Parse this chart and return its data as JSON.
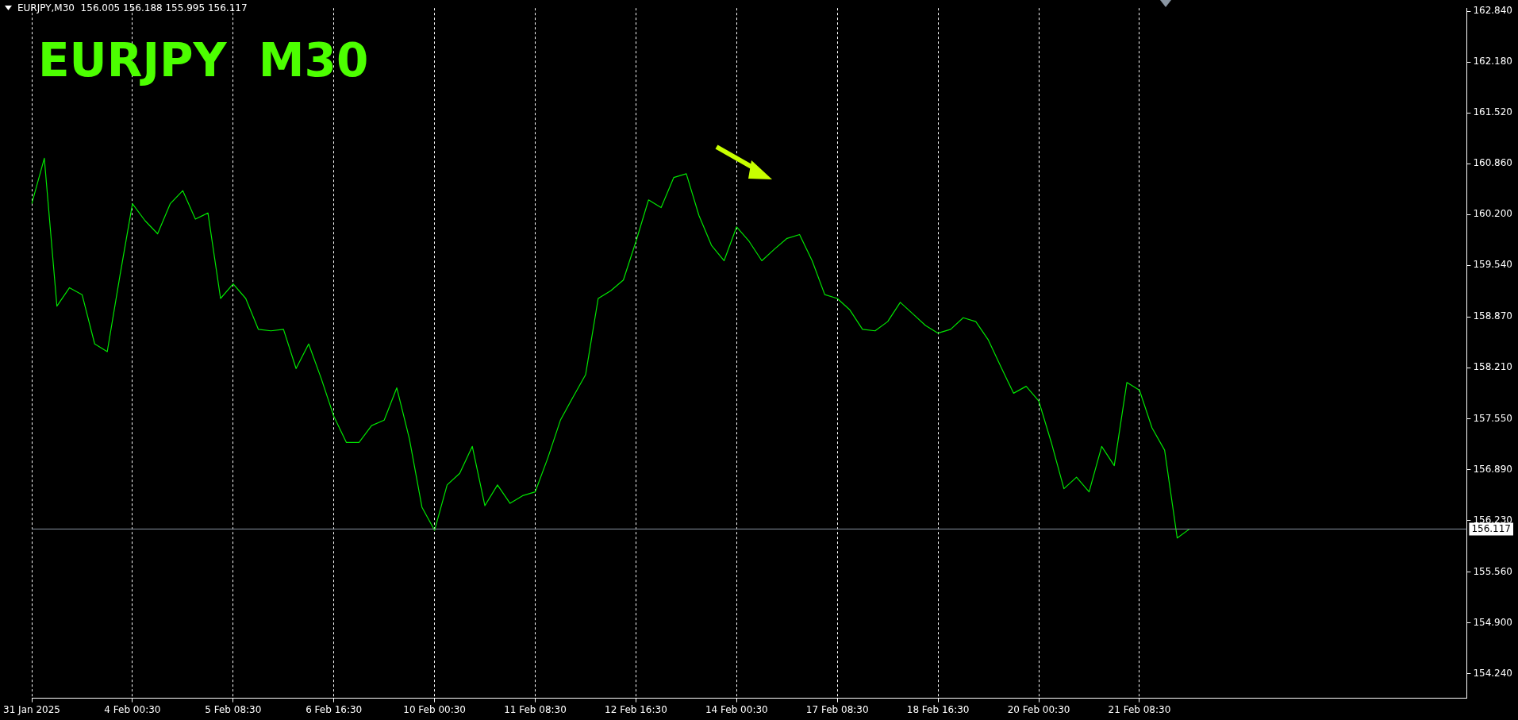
{
  "chart_data": {
    "type": "line",
    "title": "EURJPY  M30",
    "subtitle": "EURJPY,M30  156.005 156.188 155.995 156.117",
    "categories": [
      "31 Jan 2025",
      null,
      null,
      null,
      null,
      null,
      null,
      null,
      "4 Feb 00:30",
      null,
      null,
      null,
      null,
      null,
      null,
      null,
      "5 Feb 08:30",
      null,
      null,
      null,
      null,
      null,
      null,
      null,
      "6 Feb 16:30",
      null,
      null,
      null,
      null,
      null,
      null,
      null,
      "10 Feb 00:30",
      null,
      null,
      null,
      null,
      null,
      null,
      null,
      "11 Feb 08:30",
      null,
      null,
      null,
      null,
      null,
      null,
      null,
      "12 Feb 16:30",
      null,
      null,
      null,
      null,
      null,
      null,
      null,
      "14 Feb 00:30",
      null,
      null,
      null,
      null,
      null,
      null,
      null,
      "17 Feb 08:30",
      null,
      null,
      null,
      null,
      null,
      null,
      null,
      "18 Feb 16:30",
      null,
      null,
      null,
      null,
      null,
      null,
      null,
      "20 Feb 00:30",
      null,
      null,
      null,
      null,
      null,
      null,
      null,
      "21 Feb 08:30",
      null,
      null,
      null,
      null,
      null,
      null,
      null,
      null,
      null,
      null,
      null,
      null,
      null,
      null,
      null,
      null,
      null,
      null,
      null,
      null,
      null,
      null,
      null,
      null,
      null,
      null
    ],
    "series": [
      {
        "color": "#00e600",
        "values": [
          160.34,
          160.93,
          159.01,
          159.25,
          159.16,
          158.52,
          158.42,
          159.4,
          160.34,
          160.12,
          159.95,
          160.34,
          160.51,
          160.14,
          160.22,
          159.11,
          159.3,
          159.11,
          158.71,
          158.69,
          158.71,
          158.2,
          158.52,
          158.07,
          157.58,
          157.24,
          157.24,
          157.46,
          157.53,
          157.95,
          157.29,
          156.4,
          156.1,
          156.69,
          156.84,
          157.19,
          156.42,
          156.69,
          156.45,
          156.55,
          156.6,
          157.04,
          157.53,
          157.83,
          158.12,
          159.11,
          159.21,
          159.35,
          159.85,
          160.39,
          160.29,
          160.68,
          160.73,
          160.19,
          159.8,
          159.6,
          160.04,
          159.85,
          159.6,
          159.75,
          159.89,
          159.94,
          159.6,
          159.16,
          159.11,
          158.96,
          158.71,
          158.69,
          158.81,
          159.06,
          158.91,
          158.76,
          158.66,
          158.71,
          158.86,
          158.81,
          158.57,
          158.22,
          157.88,
          157.97,
          157.78,
          157.24,
          156.64,
          156.79,
          156.6,
          157.19,
          156.94,
          158.02,
          157.92,
          157.43,
          157.14,
          156.0,
          156.12,
          null,
          null,
          null,
          null,
          null,
          null,
          null,
          null,
          null,
          null,
          null,
          null,
          null,
          null,
          null,
          null,
          null,
          null,
          null,
          null,
          null,
          null
        ]
      }
    ],
    "ylim": [
      153.92,
      162.88
    ],
    "yticks": [
      {
        "value": 162.84,
        "label": "162.840"
      },
      {
        "value": 162.18,
        "label": "162.180"
      },
      {
        "value": 161.52,
        "label": "161.520"
      },
      {
        "value": 160.86,
        "label": "160.860"
      },
      {
        "value": 160.2,
        "label": "160.200"
      },
      {
        "value": 159.54,
        "label": "159.540"
      },
      {
        "value": 158.87,
        "label": "158.870"
      },
      {
        "value": 158.21,
        "label": "158.210"
      },
      {
        "value": 157.55,
        "label": "157.550"
      },
      {
        "value": 156.89,
        "label": "156.890"
      },
      {
        "value": 156.23,
        "label": "156.230"
      },
      {
        "value": 155.56,
        "label": "155.560"
      },
      {
        "value": 154.9,
        "label": "154.900"
      },
      {
        "value": 154.24,
        "label": "154.240"
      }
    ],
    "ref_lines": [
      {
        "axis": "y",
        "value": 156.117,
        "label": "156.117",
        "color": "#8a96a3"
      }
    ],
    "grid": "x",
    "legend": false,
    "marker": "none",
    "line_style": "solid"
  }
}
